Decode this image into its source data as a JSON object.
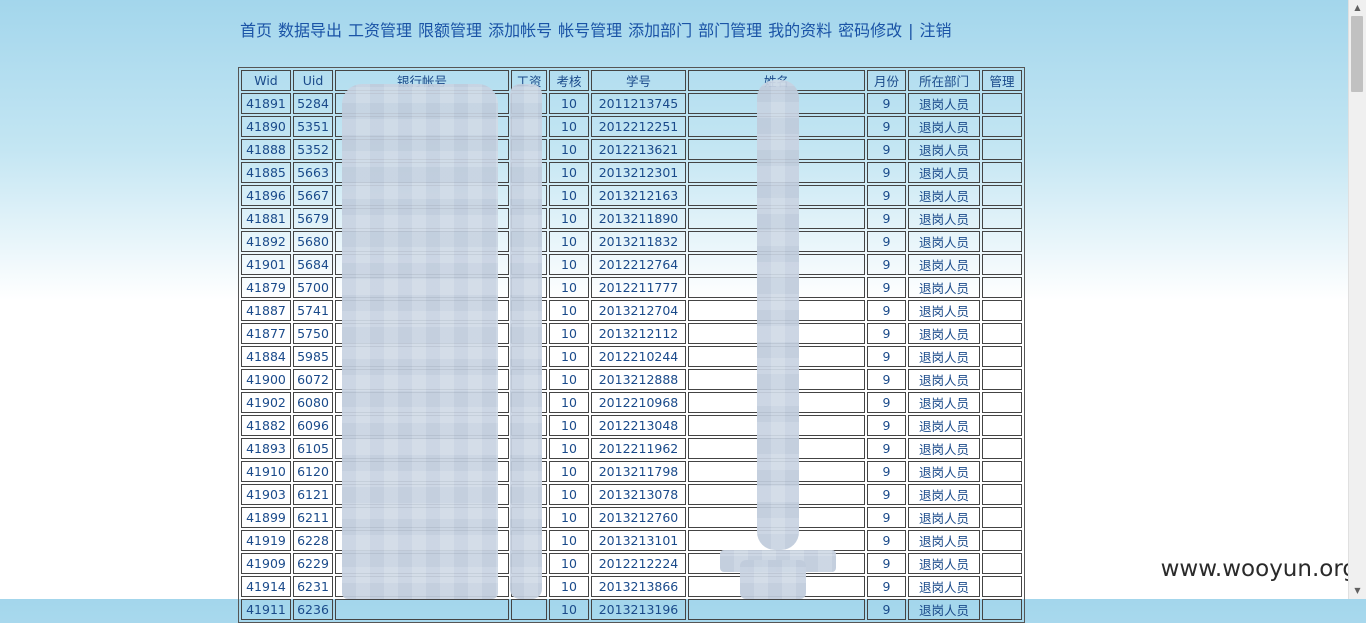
{
  "nav": {
    "items": [
      "首页",
      "数据导出",
      "工资管理",
      "限额管理",
      "添加帐号",
      "帐号管理",
      "添加部门",
      "部门管理",
      "我的资料",
      "密码修改"
    ],
    "separator": "|",
    "logout": "注销"
  },
  "table": {
    "headers": [
      "Wid",
      "Uid",
      "银行帐号",
      "工资",
      "考核",
      "学号",
      "姓名",
      "月份",
      "所在部门",
      "管理"
    ],
    "rows": [
      [
        "41891",
        "5284",
        "",
        "",
        "10",
        "2011213745",
        "",
        "9",
        "退岗人员",
        ""
      ],
      [
        "41890",
        "5351",
        "",
        "",
        "10",
        "2012212251",
        "",
        "9",
        "退岗人员",
        ""
      ],
      [
        "41888",
        "5352",
        "",
        "",
        "10",
        "2012213621",
        "",
        "9",
        "退岗人员",
        ""
      ],
      [
        "41885",
        "5663",
        "",
        "",
        "10",
        "2013212301",
        "",
        "9",
        "退岗人员",
        ""
      ],
      [
        "41896",
        "5667",
        "",
        "",
        "10",
        "2013212163",
        "",
        "9",
        "退岗人员",
        ""
      ],
      [
        "41881",
        "5679",
        "",
        "",
        "10",
        "2013211890",
        "",
        "9",
        "退岗人员",
        ""
      ],
      [
        "41892",
        "5680",
        "",
        "",
        "10",
        "2013211832",
        "",
        "9",
        "退岗人员",
        ""
      ],
      [
        "41901",
        "5684",
        "",
        "",
        "10",
        "2012212764",
        "",
        "9",
        "退岗人员",
        ""
      ],
      [
        "41879",
        "5700",
        "",
        "",
        "10",
        "2012211777",
        "",
        "9",
        "退岗人员",
        ""
      ],
      [
        "41887",
        "5741",
        "",
        "",
        "10",
        "2013212704",
        "",
        "9",
        "退岗人员",
        ""
      ],
      [
        "41877",
        "5750",
        "",
        "",
        "10",
        "2013212112",
        "",
        "9",
        "退岗人员",
        ""
      ],
      [
        "41884",
        "5985",
        "",
        "",
        "10",
        "2012210244",
        "",
        "9",
        "退岗人员",
        ""
      ],
      [
        "41900",
        "6072",
        "",
        "",
        "10",
        "2013212888",
        "",
        "9",
        "退岗人员",
        ""
      ],
      [
        "41902",
        "6080",
        "",
        "",
        "10",
        "2012210968",
        "",
        "9",
        "退岗人员",
        ""
      ],
      [
        "41882",
        "6096",
        "",
        "",
        "10",
        "2012213048",
        "",
        "9",
        "退岗人员",
        ""
      ],
      [
        "41893",
        "6105",
        "",
        "",
        "10",
        "2012211962",
        "",
        "9",
        "退岗人员",
        ""
      ],
      [
        "41910",
        "6120",
        "",
        "",
        "10",
        "2013211798",
        "",
        "9",
        "退岗人员",
        ""
      ],
      [
        "41903",
        "6121",
        "",
        "",
        "10",
        "2013213078",
        "",
        "9",
        "退岗人员",
        ""
      ],
      [
        "41899",
        "6211",
        "",
        "",
        "10",
        "2013212760",
        "",
        "9",
        "退岗人员",
        ""
      ],
      [
        "41919",
        "6228",
        "",
        "",
        "10",
        "2013213101",
        "",
        "9",
        "退岗人员",
        ""
      ],
      [
        "41909",
        "6229",
        "",
        "",
        "10",
        "2012212224",
        "",
        "9",
        "退岗人员",
        ""
      ],
      [
        "41914",
        "6231",
        "",
        "",
        "10",
        "2013213866",
        "",
        "9",
        "退岗人员",
        ""
      ],
      [
        "41911",
        "6236",
        "",
        "",
        "10",
        "2013213196",
        "",
        "9",
        "退岗人员",
        ""
      ]
    ]
  },
  "watermark": "www.wooyun.org",
  "colors": {
    "link": "#1a53a6",
    "text": "#1a4a8a",
    "bg_top": "#a3d6ec"
  },
  "icons": {
    "scroll_up": "triangle-up-icon",
    "scroll_down": "triangle-down-icon"
  }
}
